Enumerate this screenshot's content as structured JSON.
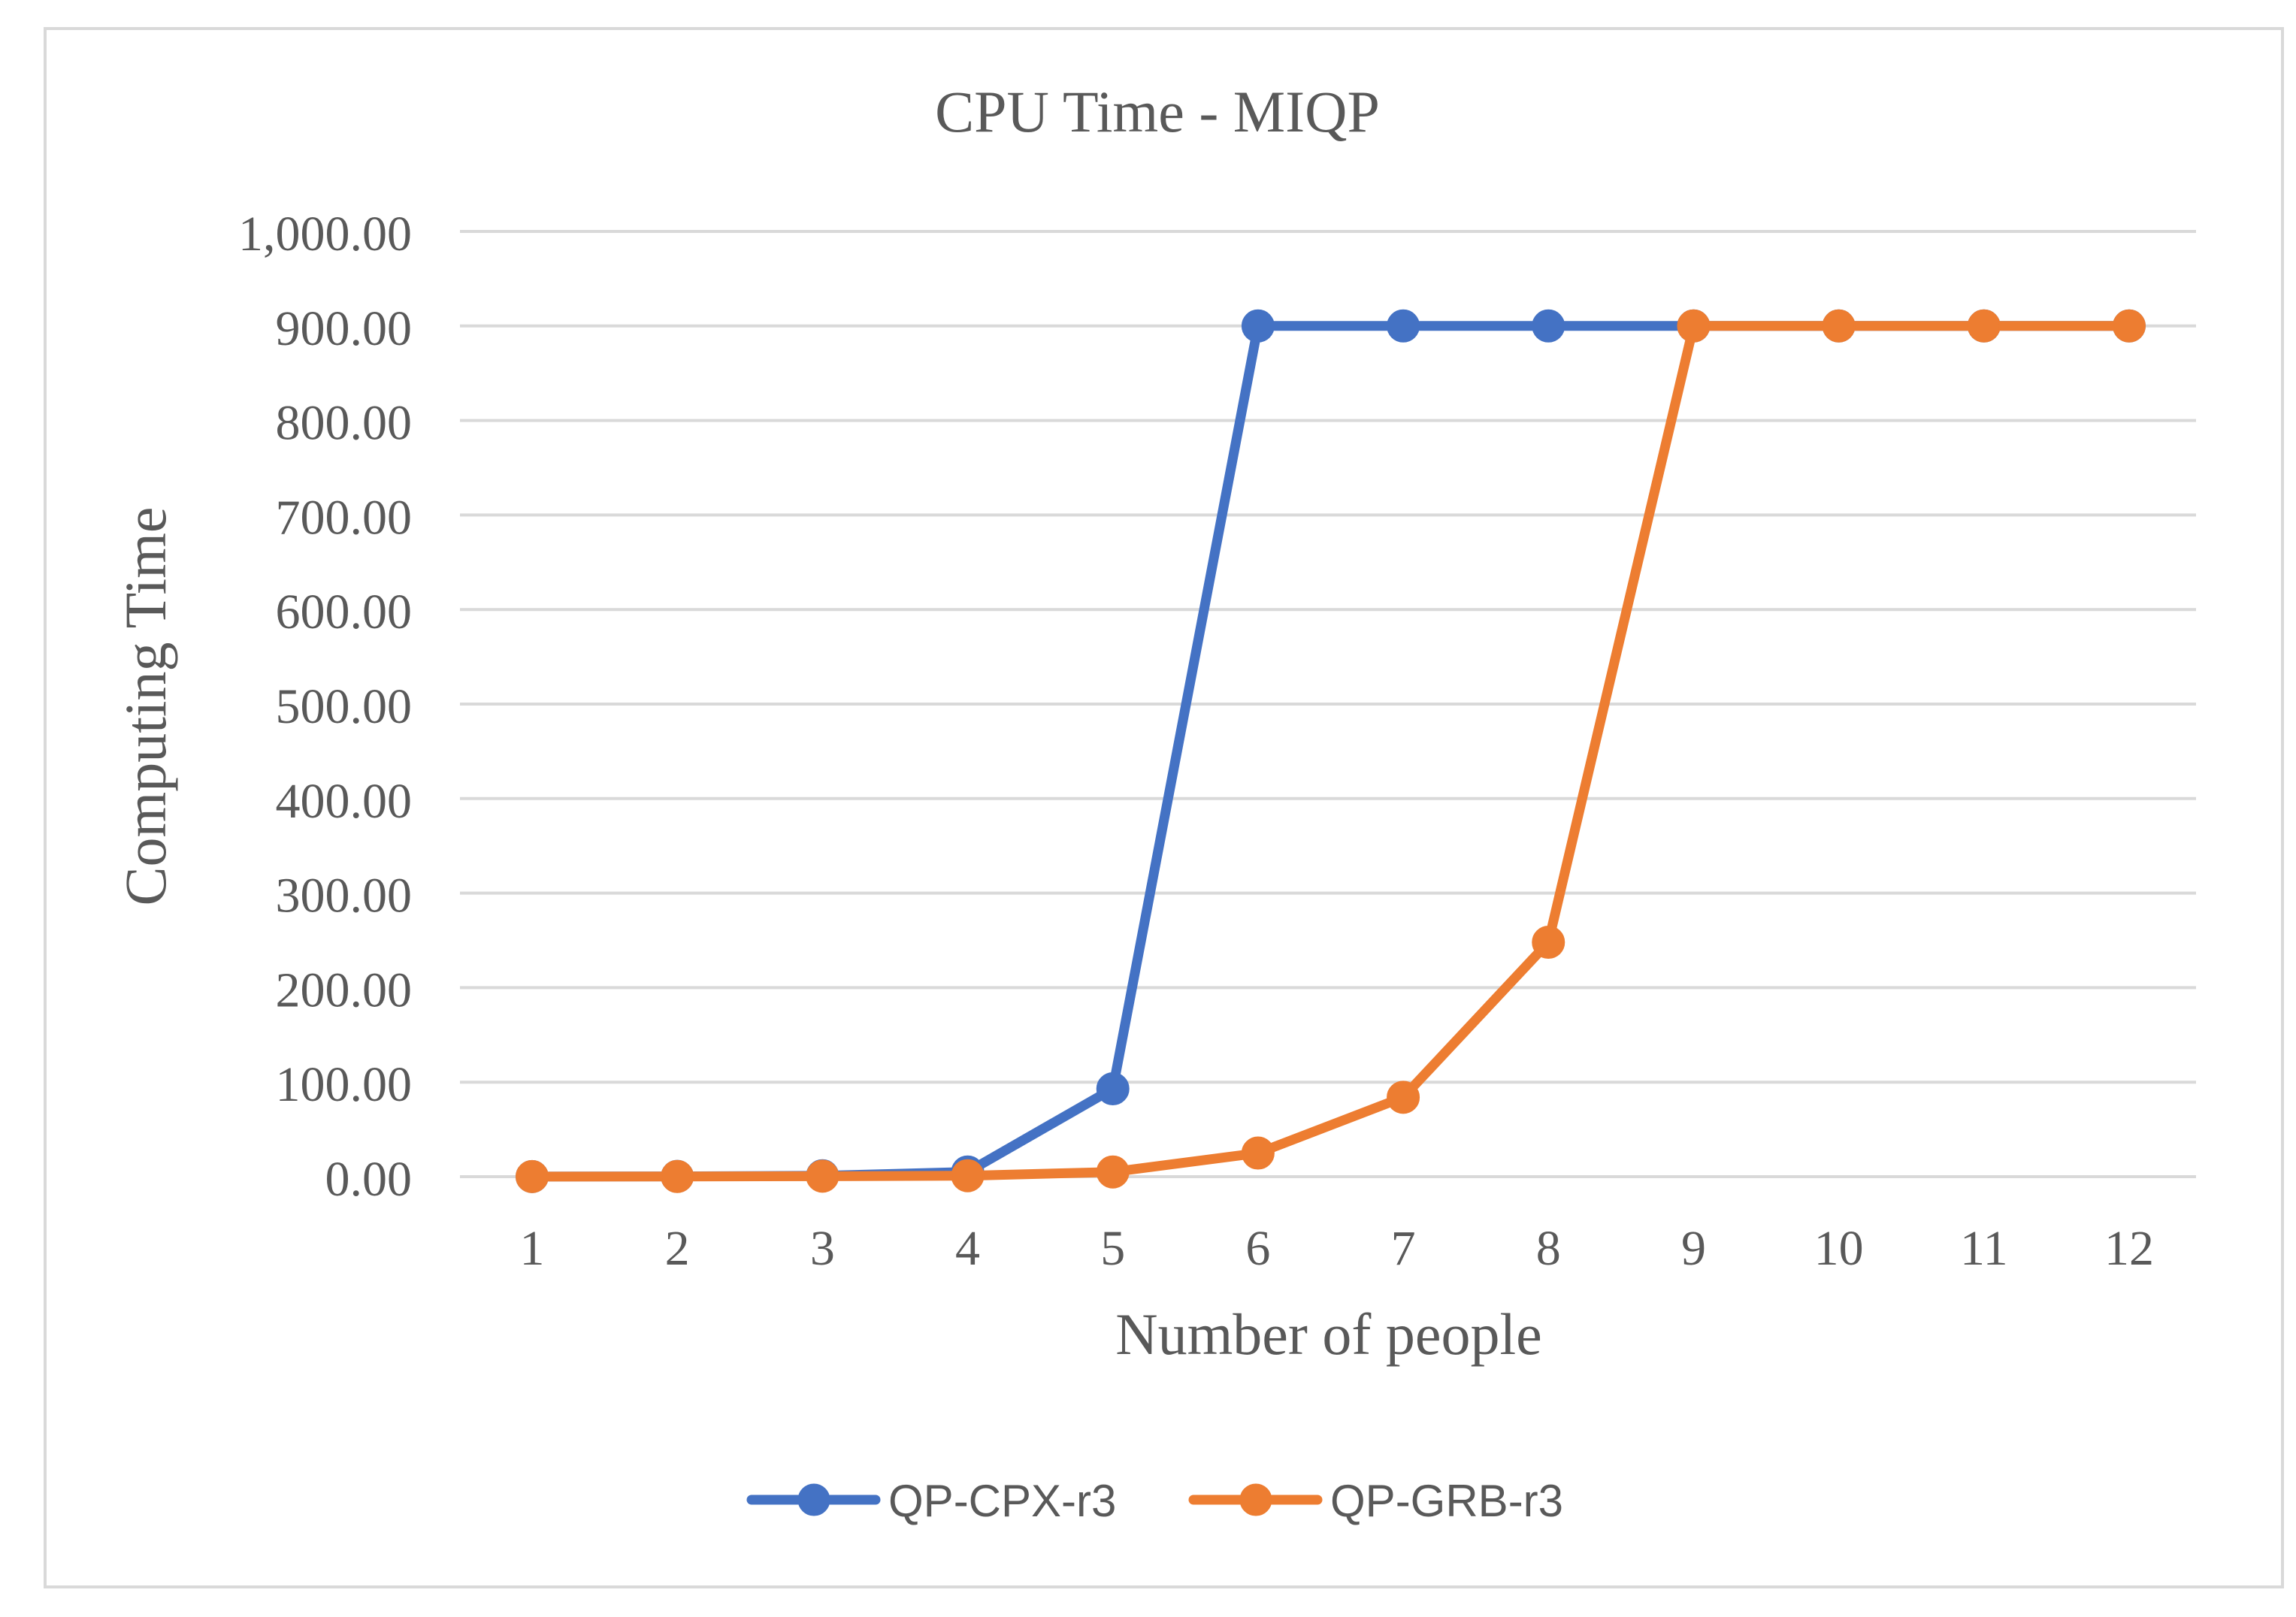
{
  "chart_data": {
    "type": "line",
    "title": "CPU Time - MIQP",
    "xlabel": "Number of people",
    "ylabel": "Computing Time",
    "categories": [
      "1",
      "2",
      "3",
      "4",
      "5",
      "6",
      "7",
      "8",
      "9",
      "10",
      "11",
      "12"
    ],
    "ylim": [
      0,
      1000
    ],
    "yticks": [
      0,
      100,
      200,
      300,
      400,
      500,
      600,
      700,
      800,
      900,
      1000
    ],
    "ytick_labels": [
      "0.00",
      "100.00",
      "200.00",
      "300.00",
      "400.00",
      "500.00",
      "600.00",
      "700.00",
      "800.00",
      "900.00",
      "1,000.00"
    ],
    "grid": true,
    "legend_position": "bottom-center",
    "series": [
      {
        "name": "QP-CPX-r3",
        "color": "#4472C4",
        "values": [
          0.1,
          0.3,
          1,
          5,
          93,
          900,
          900,
          900,
          900,
          900,
          900,
          900
        ]
      },
      {
        "name": "QP-GRB-r3",
        "color": "#ED7D31",
        "values": [
          0.1,
          0.2,
          0.5,
          1,
          5,
          25,
          84,
          248,
          900,
          900,
          900,
          900
        ]
      }
    ]
  }
}
